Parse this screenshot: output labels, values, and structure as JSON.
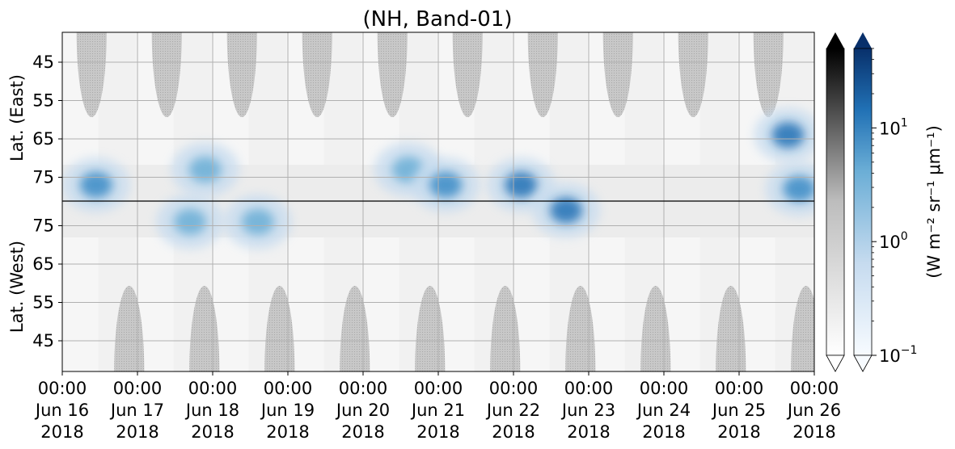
{
  "chart_data": {
    "type": "heatmap",
    "title": "(NH, Band-01)",
    "x_ticks": [
      {
        "time": "00:00",
        "date": "Jun 16",
        "year": "2018"
      },
      {
        "time": "00:00",
        "date": "Jun 17",
        "year": "2018"
      },
      {
        "time": "00:00",
        "date": "Jun 18",
        "year": "2018"
      },
      {
        "time": "00:00",
        "date": "Jun 19",
        "year": "2018"
      },
      {
        "time": "00:00",
        "date": "Jun 20",
        "year": "2018"
      },
      {
        "time": "00:00",
        "date": "Jun 21",
        "year": "2018"
      },
      {
        "time": "00:00",
        "date": "Jun 22",
        "year": "2018"
      },
      {
        "time": "00:00",
        "date": "Jun 23",
        "year": "2018"
      },
      {
        "time": "00:00",
        "date": "Jun 24",
        "year": "2018"
      },
      {
        "time": "00:00",
        "date": "Jun 25",
        "year": "2018"
      },
      {
        "time": "00:00",
        "date": "Jun 26",
        "year": "2018"
      }
    ],
    "x_range": [
      "2018-06-16 00:00",
      "2018-06-26 00:00"
    ],
    "y_panels": [
      {
        "label": "Lat. (East)",
        "ticks": [
          "45",
          "55",
          "65",
          "75"
        ]
      },
      {
        "label": "Lat. (West)",
        "ticks": [
          "75",
          "65",
          "55",
          "45"
        ]
      }
    ],
    "colorbar_label": "(W m⁻² sr⁻¹ μm⁻¹)",
    "colorbar_ticks": [
      {
        "base": "10",
        "exp": "1"
      },
      {
        "base": "10",
        "exp": "0"
      },
      {
        "base": "10",
        "exp": "−1"
      }
    ],
    "colorbar_scale": "log",
    "colorbar_range": [
      0.1,
      50
    ],
    "colormaps": [
      "Greys",
      "Blues"
    ],
    "grid": true,
    "colors": {
      "blue_dark": "#08306b",
      "blue_mid": "#3182bd",
      "blue_light": "#c6dbef",
      "grey_mask": "#bdbdbd"
    },
    "activity_centers": [
      {
        "day": 0.45,
        "lat": 77,
        "hemisphere": "East",
        "value": 8
      },
      {
        "day": 1.9,
        "lat": 73,
        "hemisphere": "East",
        "value": 4
      },
      {
        "day": 1.7,
        "lat": 76,
        "hemisphere": "West",
        "value": 5
      },
      {
        "day": 2.6,
        "lat": 76,
        "hemisphere": "West",
        "value": 4
      },
      {
        "day": 4.6,
        "lat": 73,
        "hemisphere": "East",
        "value": 4
      },
      {
        "day": 5.1,
        "lat": 77,
        "hemisphere": "East",
        "value": 9
      },
      {
        "day": 6.1,
        "lat": 77,
        "hemisphere": "East",
        "value": 12
      },
      {
        "day": 6.7,
        "lat": 79,
        "hemisphere": "West",
        "value": 10
      },
      {
        "day": 9.65,
        "lat": 64,
        "hemisphere": "East",
        "value": 10
      },
      {
        "day": 9.8,
        "lat": 78,
        "hemisphere": "East",
        "value": 9
      }
    ]
  }
}
